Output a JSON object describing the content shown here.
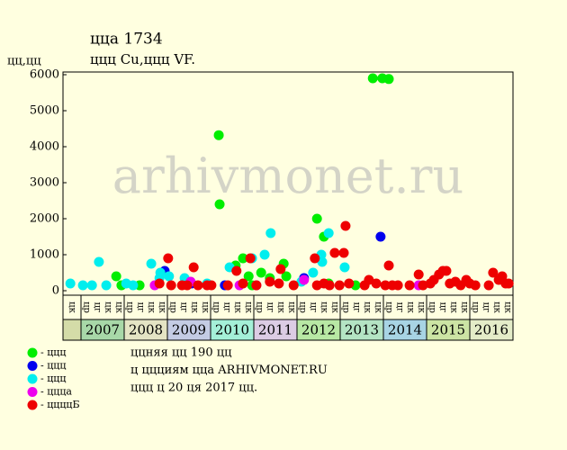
{
  "chart_data": {
    "type": "scatter",
    "title": "ццa 1734",
    "subtitle": "ццц Cu,ццц VF.",
    "y_label": "цц,цц",
    "watermark": "arhivmonet.ru",
    "xlim": [
      2006.6,
      2017.0
    ],
    "ylim": [
      0,
      6000
    ],
    "yticks": [
      0,
      1000,
      2000,
      3000,
      4000,
      5000,
      6000
    ],
    "years": [
      "2007",
      "2008",
      "2009",
      "2010",
      "2011",
      "2012",
      "2013",
      "2014",
      "2015",
      "2016"
    ],
    "year_colors": [
      "#a8d8a8",
      "#e4e4c4",
      "#c4cce4",
      "#a4f0d8",
      "#dccce4",
      "#b8e8a4",
      "#b4e4c4",
      "#a8d4e4",
      "#cce4a4",
      "#e4ecc8"
    ],
    "blank_color": "#d4dca8",
    "period_labels": [
      "цк",
      "цр",
      "цг",
      "цк",
      "цк",
      "цр",
      "цг",
      "цк",
      "цк",
      "цр",
      "цг",
      "цк",
      "цк",
      "цр",
      "цг",
      "цк",
      "цк",
      "цр",
      "цг",
      "цк",
      "цк",
      "цр",
      "цг",
      "цк",
      "цк",
      "цр",
      "цг",
      "цк",
      "цк",
      "цр",
      "цг",
      "цк",
      "цк",
      "цр",
      "цг",
      "цк",
      "цк",
      "цр",
      "цг",
      "цк",
      "цк"
    ],
    "notes": [
      "ццняя цц 190 цц",
      "ц ццциям цца ARHIVMONET.RU",
      "ццц ц 20 ця 2017 цц."
    ],
    "series": [
      {
        "name": "- ццц",
        "color": "#00ee00",
        "x": [
          2007.83,
          2007.95,
          2008.37,
          2010.2,
          2010.22,
          2010.59,
          2010.76,
          2010.89,
          2010.97,
          2011.18,
          2011.38,
          2011.7,
          2011.76,
          2012.47,
          2012.63,
          2012.74,
          2013.36,
          2013.76,
          2013.98,
          2014.13
        ],
        "values": [
          400,
          150,
          150,
          4320,
          2400,
          700,
          900,
          400,
          150,
          500,
          350,
          750,
          400,
          2000,
          1500,
          200,
          150,
          5900,
          5900,
          5880
        ]
      },
      {
        "name": "- ццц",
        "color": "#0000ee",
        "x": [
          2008.95,
          2009.57,
          2010.34,
          2012.17,
          2013.94
        ],
        "values": [
          550,
          200,
          150,
          350,
          1500
        ]
      },
      {
        "name": "- ццц",
        "color": "#00eeee",
        "x": [
          2006.77,
          2007.06,
          2007.27,
          2007.43,
          2007.6,
          2008.06,
          2008.22,
          2008.64,
          2008.83,
          2008.85,
          2009.05,
          2009.41,
          2009.93,
          2010.45,
          2010.97,
          2011.26,
          2011.4,
          2012.11,
          2012.38,
          2012.57,
          2012.59,
          2012.74,
          2013.11
        ],
        "values": [
          200,
          150,
          150,
          800,
          150,
          200,
          150,
          750,
          350,
          500,
          400,
          350,
          200,
          650,
          900,
          1000,
          1600,
          250,
          500,
          1000,
          800,
          1600,
          650
        ]
      },
      {
        "name": "- ццца",
        "color": "#ee00ee",
        "x": [
          2008.72,
          2009.55,
          2010.68,
          2011.07,
          2012.17,
          2014.82
        ],
        "values": [
          150,
          250,
          150,
          150,
          300,
          150
        ]
      },
      {
        "name": "- ццццБ",
        "color": "#ee0000",
        "x": [
          2008.83,
          2009.03,
          2009.1,
          2009.35,
          2009.47,
          2009.62,
          2009.72,
          2009.93,
          2010.03,
          2010.41,
          2010.61,
          2010.76,
          2010.93,
          2011.07,
          2011.38,
          2011.59,
          2011.63,
          2011.93,
          2012.42,
          2012.47,
          2012.63,
          2012.76,
          2012.88,
          2012.99,
          2013.09,
          2013.13,
          2013.21,
          2013.57,
          2013.67,
          2013.84,
          2014.05,
          2014.13,
          2014.21,
          2014.34,
          2014.61,
          2014.82,
          2014.92,
          2015.09,
          2015.17,
          2015.29,
          2015.38,
          2015.46,
          2015.54,
          2015.67,
          2015.79,
          2015.92,
          2016.0,
          2016.13,
          2016.44,
          2016.54,
          2016.67,
          2016.75,
          2016.83,
          2016.9
        ],
        "values": [
          200,
          900,
          150,
          150,
          150,
          650,
          150,
          150,
          150,
          150,
          550,
          200,
          900,
          150,
          250,
          200,
          600,
          150,
          900,
          150,
          200,
          150,
          1050,
          150,
          1050,
          1800,
          200,
          150,
          300,
          200,
          150,
          700,
          150,
          150,
          150,
          450,
          150,
          200,
          300,
          450,
          550,
          550,
          200,
          250,
          150,
          300,
          200,
          150,
          150,
          500,
          300,
          400,
          200,
          200
        ]
      }
    ]
  }
}
